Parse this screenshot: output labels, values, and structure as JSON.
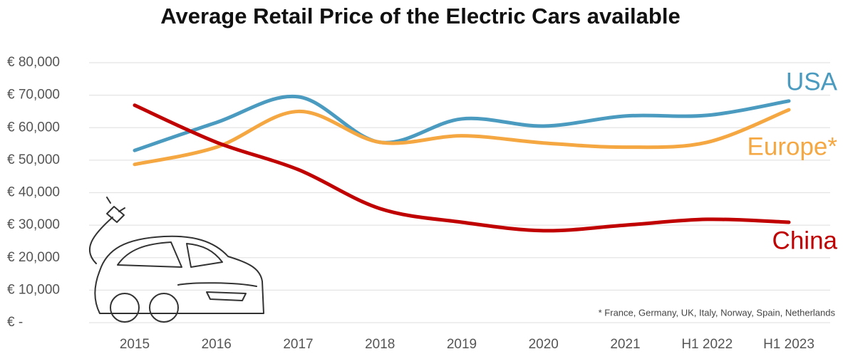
{
  "chart_data": {
    "type": "line",
    "title": "Average Retail Price of the Electric Cars available",
    "footnote": "* France, Germany, UK, Italy, Norway, Spain, Netherlands",
    "categories": [
      "2015",
      "2016",
      "2017",
      "2018",
      "2019",
      "2020",
      "2021",
      "H1 2022",
      "H1 2023"
    ],
    "series": [
      {
        "name": "USA",
        "color": "#4a9bbf",
        "values": [
          53000,
          61600,
          69500,
          55500,
          62700,
          60500,
          63600,
          63800,
          68200
        ]
      },
      {
        "name": "Europe*",
        "color": "#f5a742",
        "values": [
          48700,
          54000,
          65000,
          55500,
          57500,
          55300,
          54000,
          55500,
          65500
        ]
      },
      {
        "name": "China",
        "color": "#c00000",
        "values": [
          66900,
          55500,
          47100,
          35100,
          30900,
          28300,
          30000,
          31800,
          30900
        ]
      }
    ],
    "ylim": [
      0,
      80000
    ],
    "yticks": [
      {
        "value": 0,
        "label": "€ -"
      },
      {
        "value": 10000,
        "label": "€ 10,000"
      },
      {
        "value": 20000,
        "label": "€ 20,000"
      },
      {
        "value": 30000,
        "label": "€ 30,000"
      },
      {
        "value": 40000,
        "label": "€ 40,000"
      },
      {
        "value": 50000,
        "label": "€ 50,000"
      },
      {
        "value": 60000,
        "label": "€ 60,000"
      },
      {
        "value": 70000,
        "label": "€ 70,000"
      },
      {
        "value": 80000,
        "label": "€ 80,000"
      }
    ],
    "grid": true
  }
}
